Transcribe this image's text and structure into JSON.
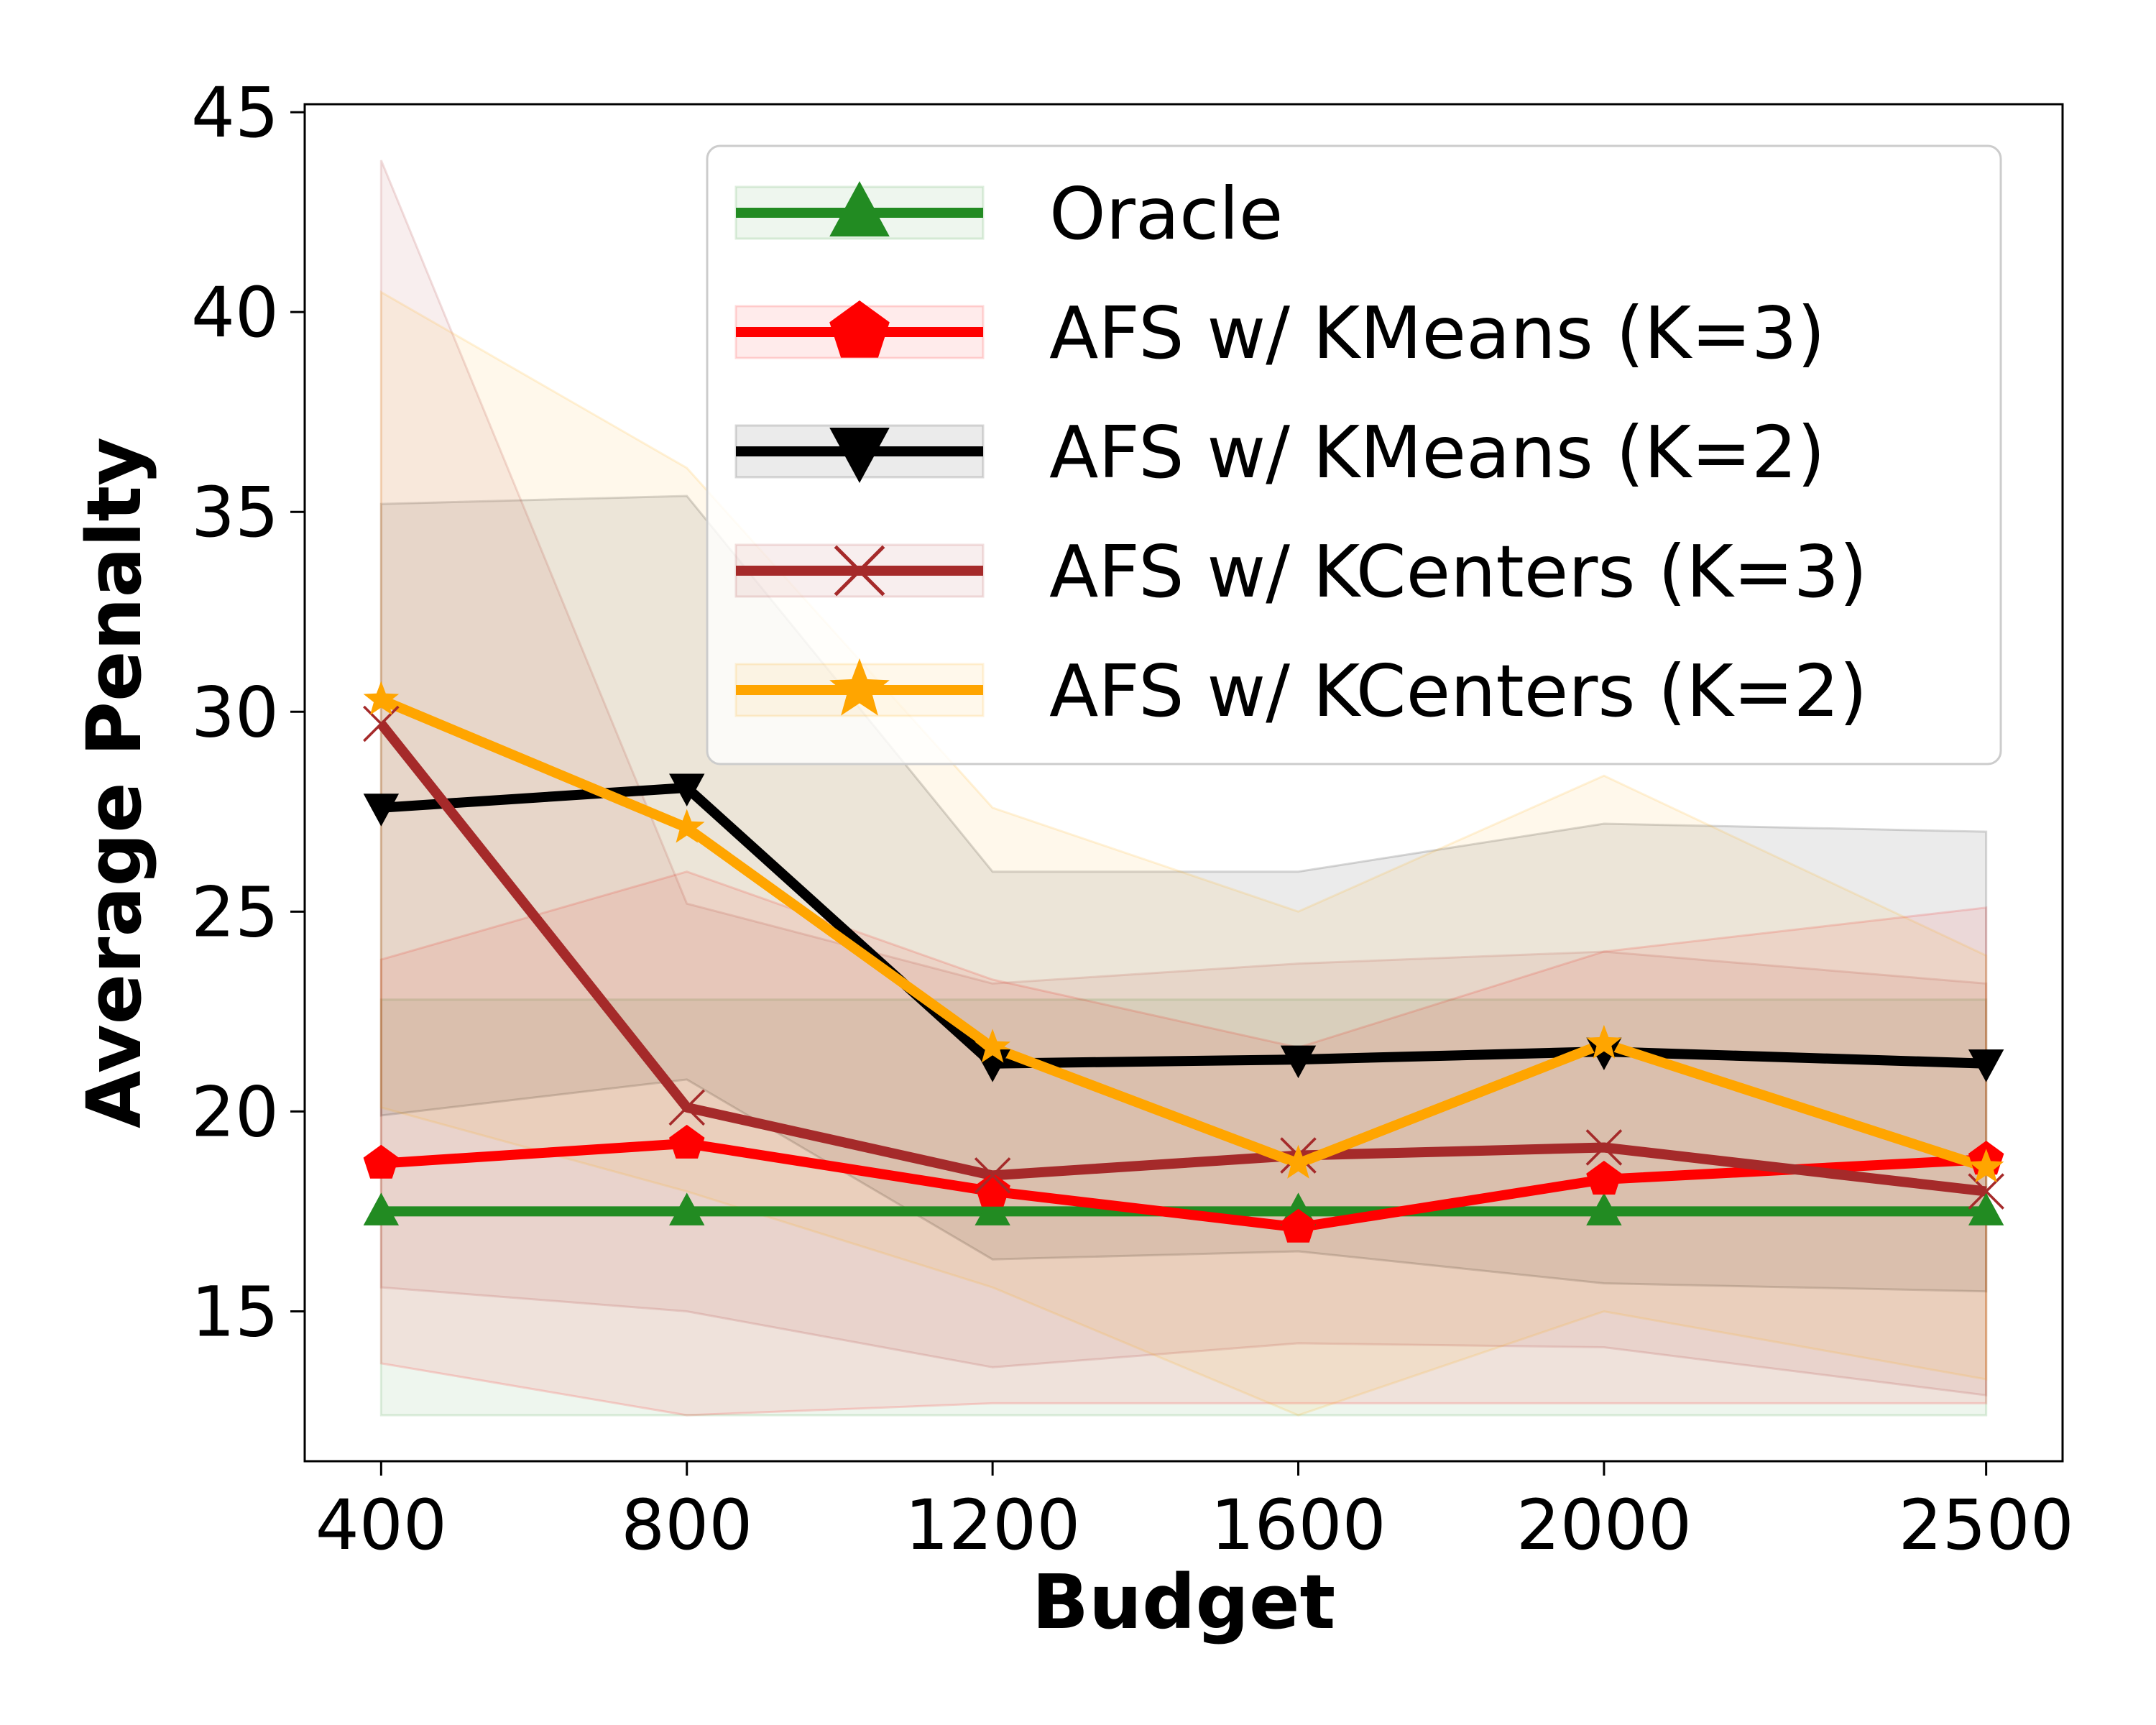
{
  "chart_data": {
    "type": "line",
    "title": "",
    "xlabel": "Budget",
    "ylabel": "Average Penalty",
    "categories": [
      "400",
      "800",
      "1200",
      "1600",
      "2000",
      "2500"
    ],
    "x_values": [
      400,
      800,
      1200,
      1600,
      2000,
      2500
    ],
    "xlim": [
      300,
      2600
    ],
    "ylim": [
      11.25,
      45.2
    ],
    "yticks": [
      15,
      20,
      25,
      30,
      35,
      40,
      45
    ],
    "grid": false,
    "legend_position": "top-right",
    "series": [
      {
        "name": "Oracle",
        "color": "#228B22",
        "marker": "triangle-up",
        "values": [
          17.5,
          17.5,
          17.5,
          17.5,
          17.5,
          17.5
        ],
        "lower": [
          12.4,
          12.4,
          12.4,
          12.4,
          12.4,
          12.4
        ],
        "upper": [
          22.8,
          22.8,
          22.8,
          22.8,
          22.8,
          22.8
        ]
      },
      {
        "name": "AFS w/ KMeans (K=3)",
        "color": "#FF0000",
        "marker": "pentagon",
        "values": [
          18.7,
          19.2,
          18.0,
          17.1,
          18.3,
          18.8
        ],
        "lower": [
          13.7,
          12.4,
          12.7,
          12.7,
          12.7,
          12.7
        ],
        "upper": [
          23.8,
          26.0,
          23.3,
          21.6,
          24.0,
          25.1
        ]
      },
      {
        "name": "AFS w/ KMeans (K=2)",
        "color": "#000000",
        "marker": "triangle-down",
        "values": [
          27.6,
          28.1,
          21.2,
          21.3,
          21.5,
          21.2
        ],
        "lower": [
          19.9,
          20.8,
          16.3,
          16.5,
          15.7,
          15.5
        ],
        "upper": [
          35.2,
          35.4,
          26.0,
          26.0,
          27.2,
          27.0
        ]
      },
      {
        "name": "AFS w/ KCenters (K=3)",
        "color": "#A52A2A",
        "marker": "x",
        "values": [
          29.7,
          20.1,
          18.4,
          18.9,
          19.1,
          18.0
        ],
        "lower": [
          15.6,
          15.0,
          13.6,
          14.2,
          14.1,
          12.9
        ],
        "upper": [
          43.8,
          25.2,
          23.2,
          23.7,
          24.0,
          23.2
        ]
      },
      {
        "name": "AFS w/ KCenters (K=2)",
        "color": "#FFA500",
        "marker": "star",
        "values": [
          30.3,
          27.1,
          21.6,
          18.7,
          21.7,
          18.6
        ],
        "lower": [
          20.1,
          18.0,
          15.6,
          12.4,
          15.0,
          13.3
        ],
        "upper": [
          40.5,
          36.1,
          27.6,
          25.0,
          28.4,
          23.9
        ]
      }
    ]
  }
}
